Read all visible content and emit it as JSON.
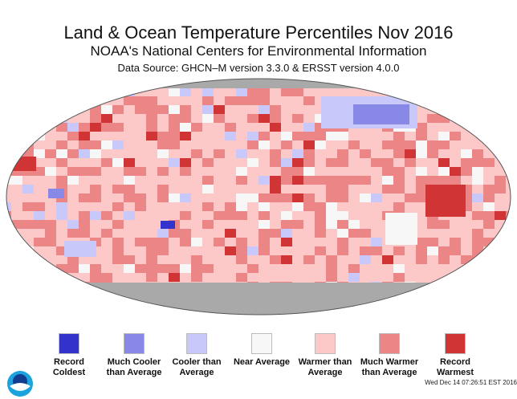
{
  "title": "Land & Ocean Temperature Percentiles Nov 2016",
  "subtitle": "NOAA's National Centers for Environmental Information",
  "source": "Data Source: GHCN–M version 3.3.0 & ERSST version 4.0.0",
  "legend": [
    {
      "label": "Record Coldest",
      "color": "#3333cc"
    },
    {
      "label": "Much Cooler than Average",
      "color": "#8888e6"
    },
    {
      "label": "Cooler than Average",
      "color": "#c8c8fa"
    },
    {
      "label": "Near Average",
      "color": "#f7f7f7"
    },
    {
      "label": "Warmer than Average",
      "color": "#fcc8c8"
    },
    {
      "label": "Much Warmer than Average",
      "color": "#ec8585"
    },
    {
      "label": "Record Warmest",
      "color": "#d13434"
    }
  ],
  "no_data_color": "#a9a9a9",
  "timestamp": "Wed Dec 14 07:26:51 EST 2016",
  "logo": "NOAA"
}
